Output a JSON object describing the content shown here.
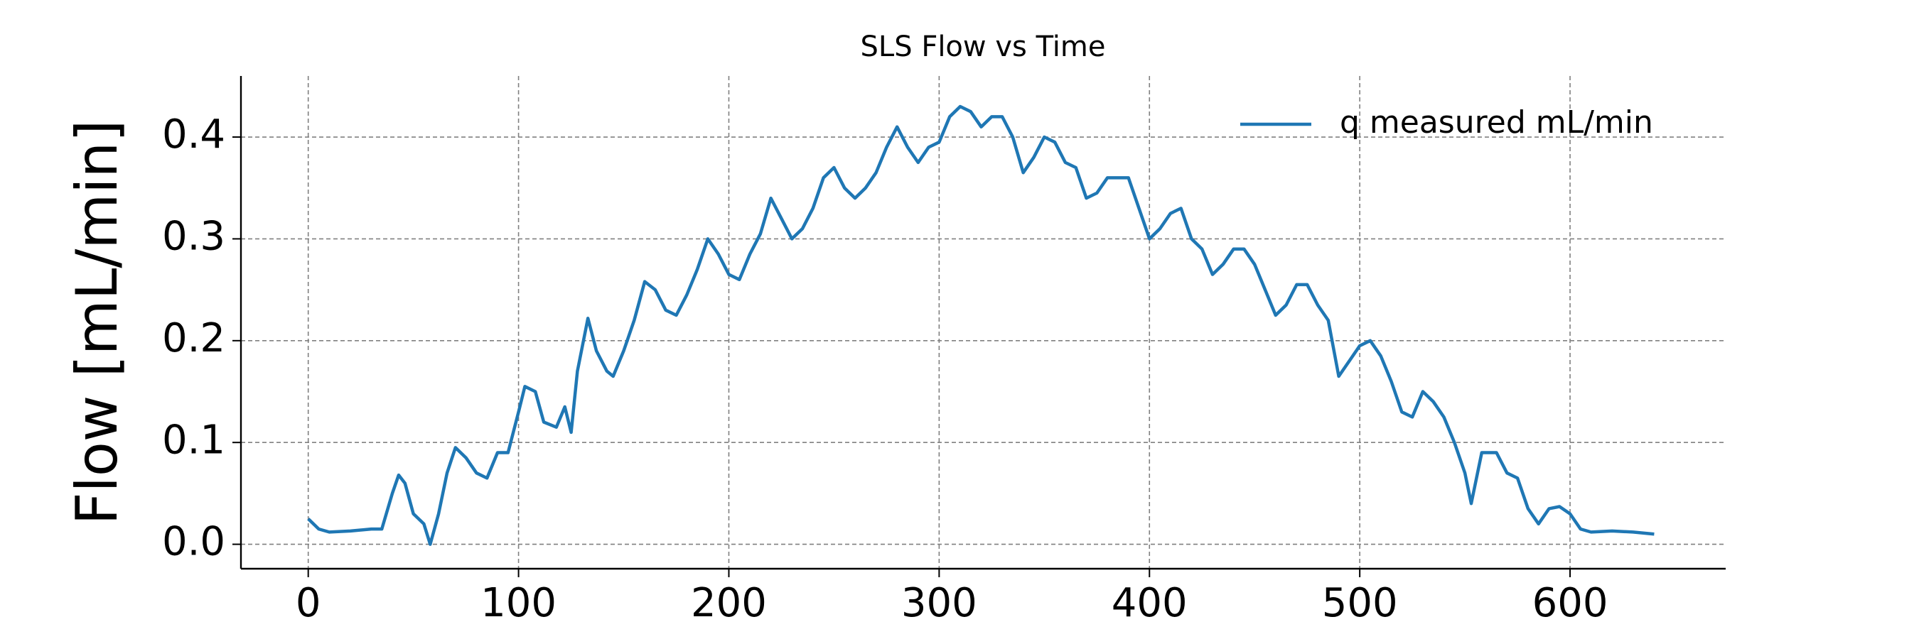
{
  "chart_data": {
    "type": "line",
    "title": "SLS Flow vs Time",
    "y_label": "Flow [mL/min]",
    "x": [
      0,
      5,
      10,
      20,
      30,
      35,
      40,
      43,
      46,
      50,
      55,
      58,
      62,
      66,
      70,
      75,
      80,
      85,
      90,
      95,
      100,
      103,
      108,
      112,
      118,
      122,
      125,
      128,
      133,
      137,
      142,
      145,
      150,
      155,
      160,
      165,
      170,
      175,
      180,
      185,
      190,
      195,
      200,
      205,
      210,
      215,
      220,
      225,
      230,
      235,
      240,
      245,
      250,
      255,
      260,
      265,
      270,
      275,
      280,
      285,
      290,
      295,
      300,
      305,
      310,
      315,
      320,
      325,
      330,
      335,
      340,
      345,
      350,
      355,
      360,
      365,
      370,
      375,
      380,
      385,
      390,
      395,
      400,
      405,
      410,
      415,
      420,
      425,
      430,
      435,
      440,
      445,
      450,
      455,
      460,
      465,
      470,
      475,
      480,
      485,
      490,
      495,
      500,
      505,
      510,
      515,
      520,
      525,
      530,
      535,
      540,
      545,
      550,
      553,
      558,
      565,
      570,
      575,
      580,
      585,
      590,
      595,
      600,
      605,
      610,
      620,
      630,
      640
    ],
    "series": [
      {
        "name": "q measured mL/min",
        "color": "#1f77b4",
        "values": [
          0.025,
          0.015,
          0.012,
          0.013,
          0.015,
          0.015,
          0.05,
          0.068,
          0.06,
          0.03,
          0.02,
          0.0,
          0.03,
          0.07,
          0.095,
          0.085,
          0.07,
          0.065,
          0.09,
          0.09,
          0.13,
          0.155,
          0.15,
          0.12,
          0.115,
          0.135,
          0.11,
          0.17,
          0.222,
          0.19,
          0.17,
          0.165,
          0.19,
          0.22,
          0.258,
          0.25,
          0.23,
          0.225,
          0.245,
          0.27,
          0.3,
          0.285,
          0.265,
          0.26,
          0.285,
          0.305,
          0.34,
          0.32,
          0.3,
          0.31,
          0.33,
          0.36,
          0.37,
          0.35,
          0.34,
          0.35,
          0.365,
          0.39,
          0.41,
          0.39,
          0.375,
          0.39,
          0.395,
          0.42,
          0.43,
          0.425,
          0.41,
          0.42,
          0.42,
          0.4,
          0.365,
          0.38,
          0.4,
          0.395,
          0.375,
          0.37,
          0.34,
          0.345,
          0.36,
          0.36,
          0.36,
          0.33,
          0.3,
          0.31,
          0.325,
          0.33,
          0.3,
          0.29,
          0.265,
          0.275,
          0.29,
          0.29,
          0.275,
          0.25,
          0.225,
          0.235,
          0.255,
          0.255,
          0.235,
          0.22,
          0.165,
          0.18,
          0.195,
          0.2,
          0.185,
          0.16,
          0.13,
          0.125,
          0.15,
          0.14,
          0.125,
          0.1,
          0.07,
          0.04,
          0.09,
          0.09,
          0.07,
          0.065,
          0.035,
          0.02,
          0.035,
          0.037,
          0.03,
          0.015,
          0.012,
          0.013,
          0.012,
          0.01
        ]
      }
    ],
    "xlim": [
      -32,
      674
    ],
    "ylim": [
      -0.024,
      0.46
    ],
    "xticks": [
      0,
      100,
      200,
      300,
      400,
      500,
      600
    ],
    "yticks": [
      {
        "value": 0,
        "label": "0.0"
      },
      0.1,
      0.2,
      0.3,
      0.4
    ],
    "grid": true,
    "legend": "upper right"
  }
}
